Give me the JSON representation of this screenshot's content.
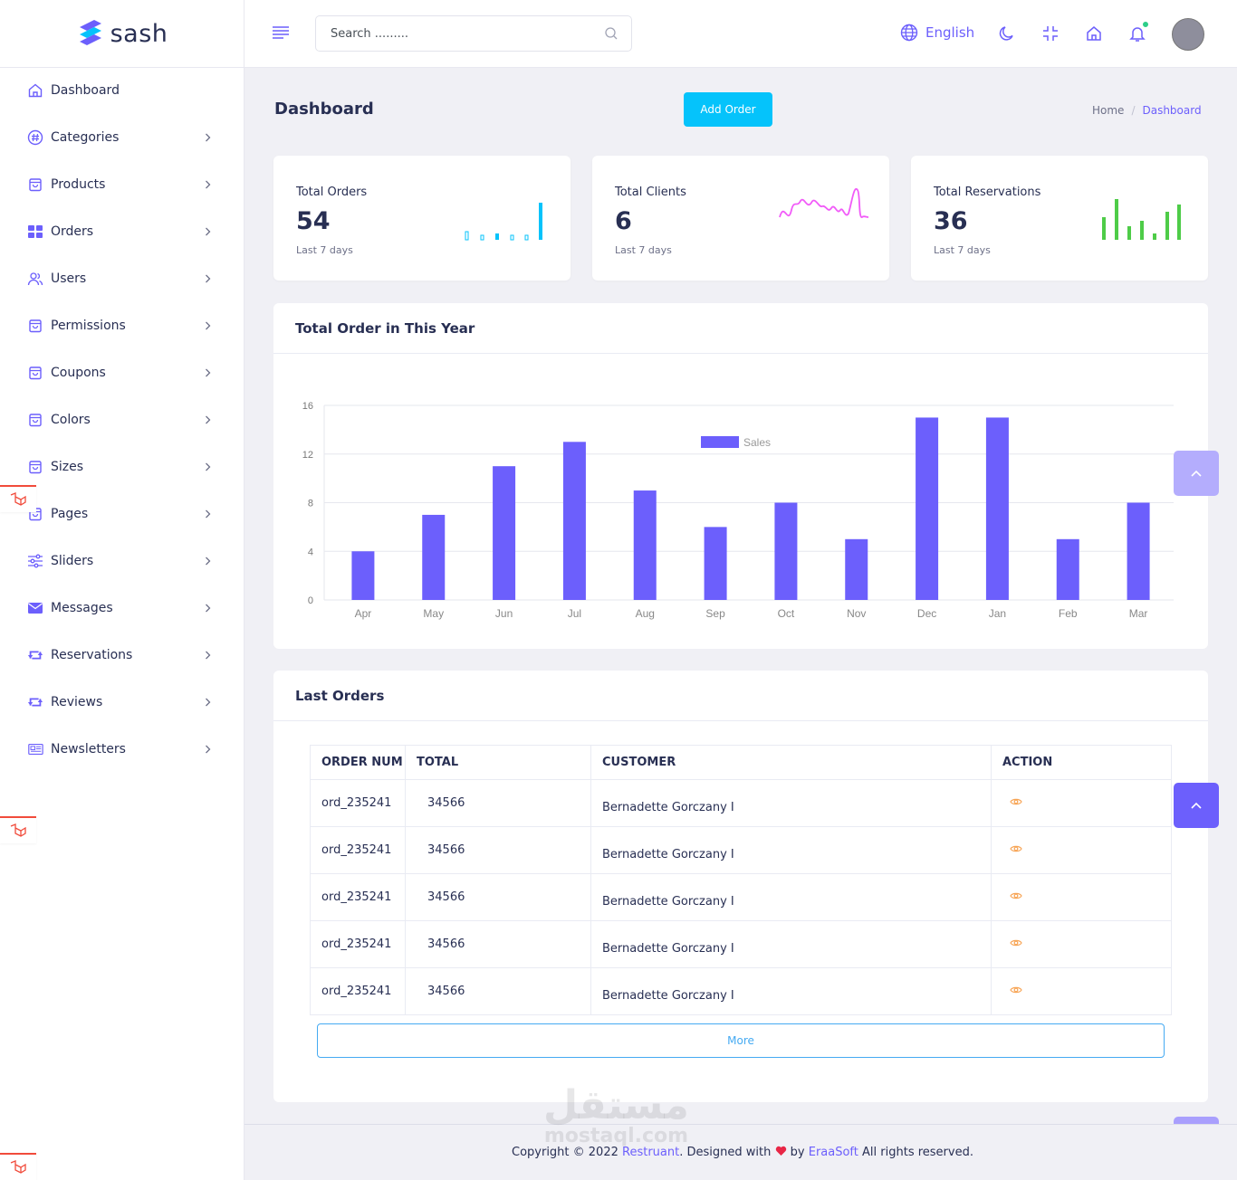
{
  "brand": {
    "name": "sash"
  },
  "sidebar": {
    "items": [
      {
        "label": "Dashboard",
        "icon": "home-icon"
      },
      {
        "label": "Categories",
        "icon": "hash-icon"
      },
      {
        "label": "Products",
        "icon": "bag-icon"
      },
      {
        "label": "Orders",
        "icon": "grid-icon"
      },
      {
        "label": "Users",
        "icon": "users-icon"
      },
      {
        "label": "Permissions",
        "icon": "bag-icon"
      },
      {
        "label": "Coupons",
        "icon": "bag-icon"
      },
      {
        "label": "Colors",
        "icon": "bag-icon"
      },
      {
        "label": "Sizes",
        "icon": "bag-icon"
      },
      {
        "label": "Pages",
        "icon": "bag-icon"
      },
      {
        "label": "Sliders",
        "icon": "sliders-icon"
      },
      {
        "label": "Messages",
        "icon": "envelope-icon"
      },
      {
        "label": "Reservations",
        "icon": "retweet-icon"
      },
      {
        "label": "Reviews",
        "icon": "retweet-icon"
      },
      {
        "label": "Newsletters",
        "icon": "newspaper-icon"
      }
    ]
  },
  "header": {
    "search_placeholder": "Search .........",
    "language": "English"
  },
  "page": {
    "title": "Dashboard",
    "add_order_label": "Add Order",
    "breadcrumb": {
      "home": "Home",
      "separator": "/",
      "current": "Dashboard"
    }
  },
  "stats": [
    {
      "title": "Total Orders",
      "value": "54",
      "sub": "Last 7 days",
      "color": "#05c3fb"
    },
    {
      "title": "Total Clients",
      "value": "6",
      "sub": "Last 7 days",
      "color": "#f15bf8"
    },
    {
      "title": "Total Reservations",
      "value": "36",
      "sub": "Last 7 days",
      "color": "#4ecc48"
    }
  ],
  "chart_card": {
    "title": "Total Order in This Year"
  },
  "chart_data": {
    "type": "bar",
    "categories": [
      "Apr",
      "May",
      "Jun",
      "Jul",
      "Aug",
      "Sep",
      "Oct",
      "Nov",
      "Dec",
      "Jan",
      "Feb",
      "Mar"
    ],
    "series": [
      {
        "name": "Sales",
        "values": [
          4,
          7,
          11,
          13,
          9,
          6,
          8,
          5,
          15,
          15,
          5,
          8
        ],
        "color": "#6c5ffc"
      }
    ],
    "ylim": [
      0,
      16
    ],
    "yticks": [
      "0",
      "4",
      "8",
      "12",
      "16"
    ],
    "legend": "top-center",
    "grid": true
  },
  "orders_card": {
    "title": "Last Orders",
    "columns": [
      "ORDER NUM",
      "TOTAL",
      "CUSTOMER",
      "ACTION"
    ],
    "rows": [
      {
        "order_num": "ord_235241",
        "total": "34566",
        "customer": "Bernadette Gorczany I"
      },
      {
        "order_num": "ord_235241",
        "total": "34566",
        "customer": "Bernadette Gorczany I"
      },
      {
        "order_num": "ord_235241",
        "total": "34566",
        "customer": "Bernadette Gorczany I"
      },
      {
        "order_num": "ord_235241",
        "total": "34566",
        "customer": "Bernadette Gorczany I"
      },
      {
        "order_num": "ord_235241",
        "total": "34566",
        "customer": "Bernadette Gorczany I"
      }
    ],
    "more_label": "More"
  },
  "footer": {
    "prefix": "Copyright © 2022",
    "app_link": "Restruant",
    "designed_with": ". Designed with",
    "by": "by",
    "company_link": "EraaSoft",
    "suffix": "All rights reserved."
  },
  "watermark": {
    "arabic": "مستقل",
    "latin": "mostaql.com"
  },
  "colors": {
    "primary": "#6c5ffc",
    "secondary": "#05c3fb",
    "heart": "#e82646",
    "action_icon": "#f7a556"
  }
}
